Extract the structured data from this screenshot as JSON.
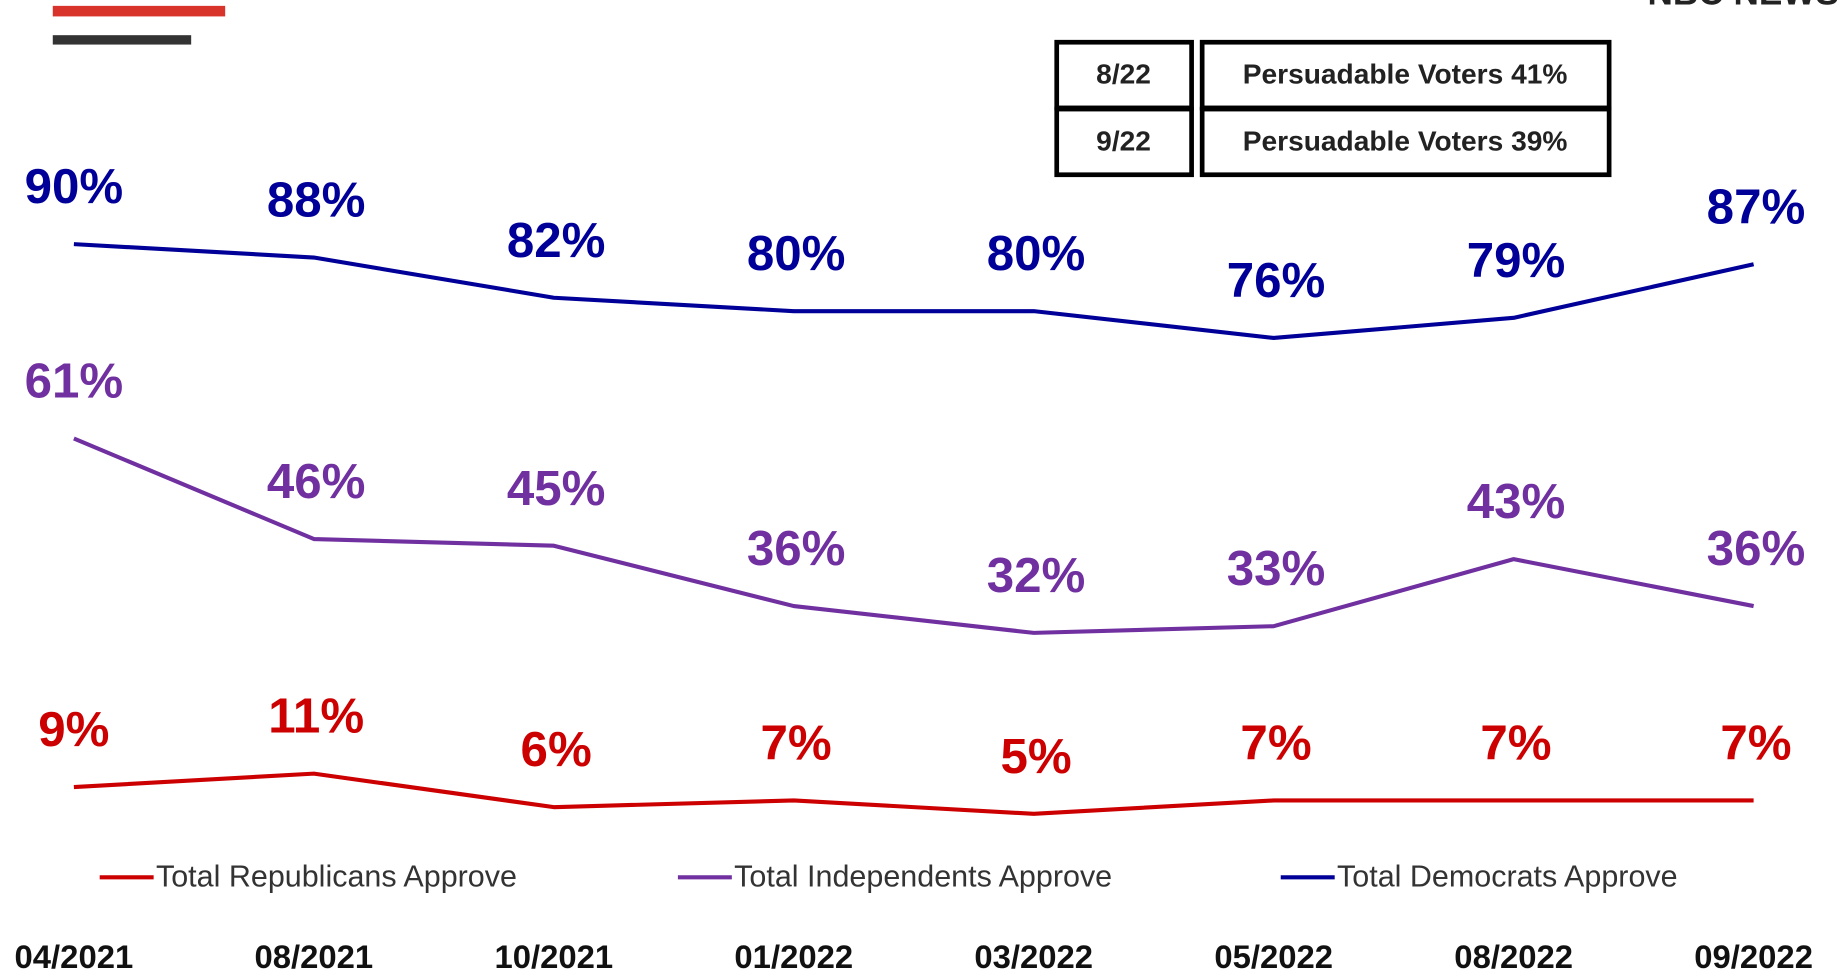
{
  "chart_data": {
    "type": "line",
    "brand": "NBC NEWS",
    "categories": [
      "04/2021",
      "08/2021",
      "10/2021",
      "01/2022",
      "03/2022",
      "05/2022",
      "08/2022",
      "09/2022"
    ],
    "series": [
      {
        "name": "Total Republicans Approve",
        "color": "#cc0000",
        "values": [
          9,
          11,
          6,
          7,
          5,
          7,
          7,
          7
        ],
        "value_labels": [
          "9%",
          "11%",
          "6%",
          "7%",
          "5%",
          "7%",
          "7%",
          "7%"
        ]
      },
      {
        "name": "Total Independents Approve",
        "color": "#7030a0",
        "values": [
          61,
          46,
          45,
          36,
          32,
          33,
          43,
          36
        ],
        "value_labels": [
          "61%",
          "46%",
          "45%",
          "36%",
          "32%",
          "33%",
          "43%",
          "36%"
        ]
      },
      {
        "name": "Total Democrats Approve",
        "color": "#000099",
        "values": [
          90,
          88,
          82,
          80,
          80,
          76,
          79,
          87
        ],
        "value_labels": [
          "90%",
          "88%",
          "82%",
          "80%",
          "80%",
          "76%",
          "79%",
          "87%"
        ]
      }
    ],
    "ylim": [
      0,
      100
    ],
    "annotations": [
      {
        "date": "8/22",
        "text": "Persuadable Voters 41%"
      },
      {
        "date": "9/22",
        "text": "Persuadable Voters 39%"
      }
    ]
  }
}
